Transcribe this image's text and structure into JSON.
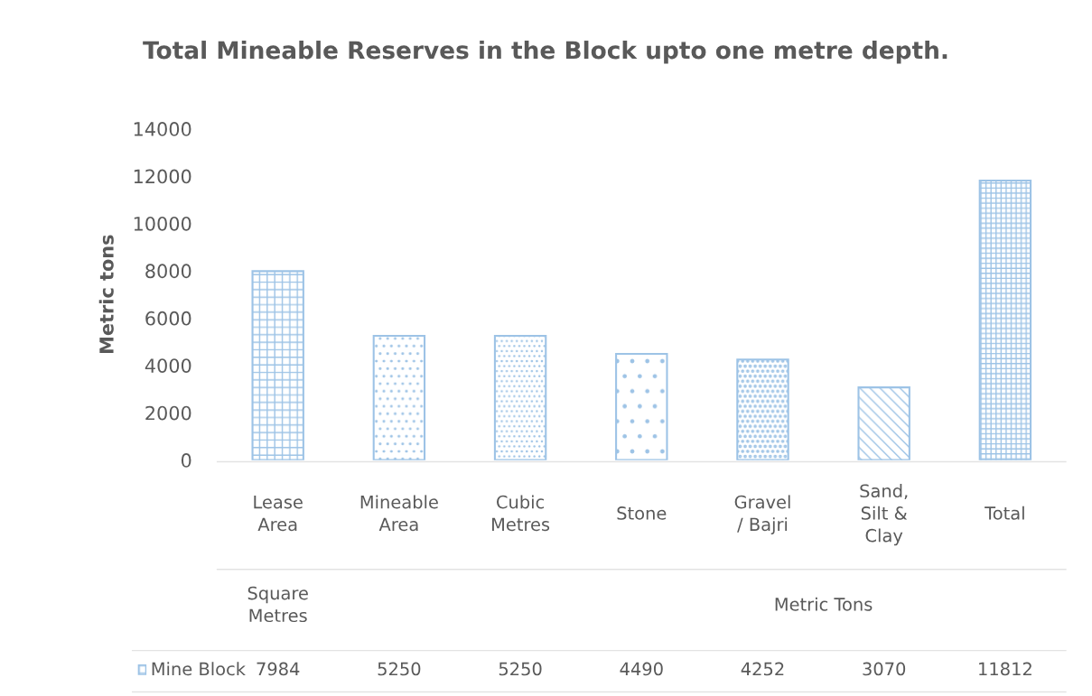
{
  "chart_data": {
    "type": "bar",
    "title": "Total Mineable Reserves in the Block upto one metre depth.",
    "ylabel": "Metric tons",
    "categories": [
      "Lease Area",
      "Mineable Area",
      "Cubic Metres",
      "Stone",
      "Gravel / Bajri",
      "Sand, Silt & Clay",
      "Total"
    ],
    "series": [
      {
        "name": "Mine Block",
        "color": "#9dc3e6",
        "values": [
          7984,
          5250,
          5250,
          4490,
          4252,
          3070,
          11812
        ]
      }
    ],
    "annotations": [
      "Square Metres",
      "Metric Tons"
    ],
    "ylim": [
      0,
      14000
    ],
    "yticks": [
      0,
      2000,
      4000,
      6000,
      8000,
      10000,
      12000,
      14000
    ],
    "data_labels": true,
    "grid": false,
    "legend": "bottom"
  }
}
